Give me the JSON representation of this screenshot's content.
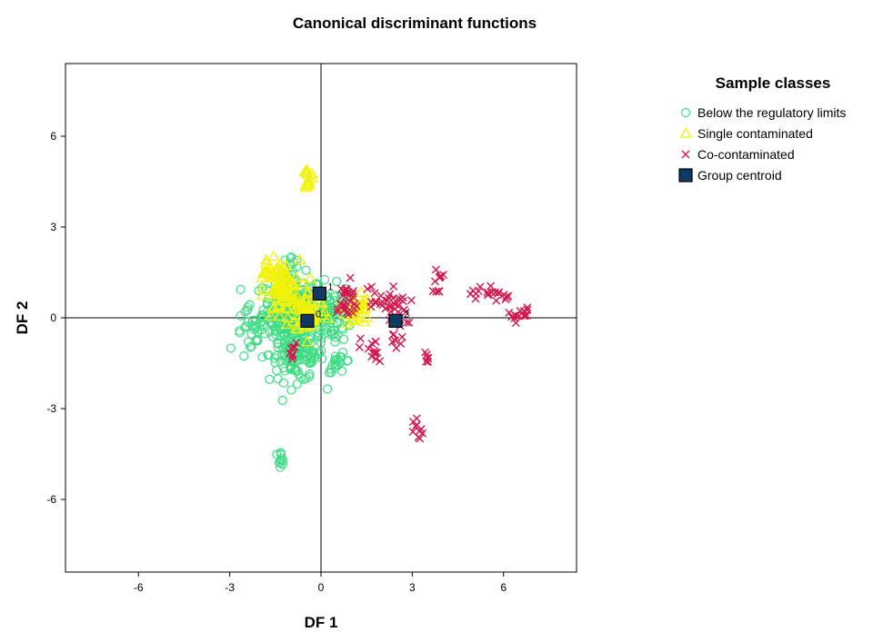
{
  "chart_data": {
    "type": "scatter",
    "title": "Canonical discriminant functions",
    "xlabel": "DF 1",
    "ylabel": "DF 2",
    "xlim": [
      -8.4,
      8.4
    ],
    "ylim": [
      -8.4,
      8.4
    ],
    "xticks": [
      -6,
      -3,
      0,
      3,
      6
    ],
    "yticks": [
      -6,
      -3,
      0,
      3,
      6
    ],
    "reference_lines": {
      "x": 0,
      "y": 0
    },
    "grid": false,
    "legend": {
      "title": "Sample classes",
      "position": "right",
      "entries": [
        {
          "label": "Below the regulatory limits",
          "marker": "circle",
          "color": "#3ddc84"
        },
        {
          "label": "Single contaminated",
          "marker": "triangle",
          "color": "#f2f20a"
        },
        {
          "label": "Co-contaminated",
          "marker": "x",
          "color": "#d3184f"
        },
        {
          "label": "Group centroid",
          "marker": "square",
          "color": "#0f3a64"
        }
      ]
    },
    "series": [
      {
        "name": "Below the regulatory limits",
        "marker": "circle",
        "color": "#3ddc84",
        "clusters": [
          {
            "cx": -0.9,
            "cy": 0.3,
            "sx": 0.5,
            "sy": 0.55,
            "n": 260
          },
          {
            "cx": -0.8,
            "cy": -1.2,
            "sx": 0.45,
            "sy": 0.45,
            "n": 130
          },
          {
            "cx": -2.3,
            "cy": -0.6,
            "sx": 0.25,
            "sy": 0.45,
            "n": 30
          },
          {
            "cx": 0.4,
            "cy": 0.1,
            "sx": 0.35,
            "sy": 0.45,
            "n": 70
          },
          {
            "cx": 0.6,
            "cy": -1.5,
            "sx": 0.2,
            "sy": 0.15,
            "n": 20
          },
          {
            "cx": -1.35,
            "cy": -4.65,
            "sx": 0.08,
            "sy": 0.12,
            "n": 12
          },
          {
            "cx": -0.9,
            "cy": 1.9,
            "sx": 0.12,
            "sy": 0.12,
            "n": 8
          }
        ]
      },
      {
        "name": "Single contaminated",
        "marker": "triangle",
        "color": "#f2f20a",
        "clusters": [
          {
            "cx": -1.3,
            "cy": 0.9,
            "sx": 0.3,
            "sy": 0.5,
            "n": 90
          },
          {
            "cx": -0.4,
            "cy": 0.2,
            "sx": 0.3,
            "sy": 0.35,
            "n": 55
          },
          {
            "cx": 1.2,
            "cy": 0.3,
            "sx": 0.2,
            "sy": 0.3,
            "n": 30
          },
          {
            "cx": -0.4,
            "cy": 4.6,
            "sx": 0.05,
            "sy": 0.2,
            "n": 14
          },
          {
            "cx": -1.8,
            "cy": 1.7,
            "sx": 0.1,
            "sy": 0.2,
            "n": 10
          }
        ]
      },
      {
        "name": "Co-contaminated",
        "marker": "x",
        "color": "#d3184f",
        "clusters": [
          {
            "cx": 0.8,
            "cy": 0.5,
            "sx": 0.25,
            "sy": 0.35,
            "n": 30
          },
          {
            "cx": 1.9,
            "cy": 0.5,
            "sx": 0.3,
            "sy": 0.3,
            "n": 22
          },
          {
            "cx": 2.6,
            "cy": 0.3,
            "sx": 0.2,
            "sy": 0.25,
            "n": 14
          },
          {
            "cx": 3.8,
            "cy": 1.2,
            "sx": 0.1,
            "sy": 0.22,
            "n": 10
          },
          {
            "cx": 5.4,
            "cy": 0.8,
            "sx": 0.25,
            "sy": 0.18,
            "n": 14
          },
          {
            "cx": 6.0,
            "cy": 0.8,
            "sx": 0.08,
            "sy": 0.12,
            "n": 6
          },
          {
            "cx": 6.5,
            "cy": 0.1,
            "sx": 0.2,
            "sy": 0.12,
            "n": 14
          },
          {
            "cx": 1.7,
            "cy": -1.1,
            "sx": 0.2,
            "sy": 0.3,
            "n": 14
          },
          {
            "cx": 2.5,
            "cy": -0.8,
            "sx": 0.12,
            "sy": 0.25,
            "n": 8
          },
          {
            "cx": 3.5,
            "cy": -1.3,
            "sx": 0.08,
            "sy": 0.1,
            "n": 6
          },
          {
            "cx": 3.2,
            "cy": -3.8,
            "sx": 0.08,
            "sy": 0.25,
            "n": 10
          },
          {
            "cx": -0.9,
            "cy": -1.2,
            "sx": 0.1,
            "sy": 0.2,
            "n": 8
          }
        ]
      }
    ],
    "centroids": [
      {
        "label": "0",
        "x": -0.45,
        "y": -0.1
      },
      {
        "label": "1",
        "x": -0.05,
        "y": 0.8
      },
      {
        "label": "2",
        "x": 2.45,
        "y": -0.1
      }
    ]
  }
}
